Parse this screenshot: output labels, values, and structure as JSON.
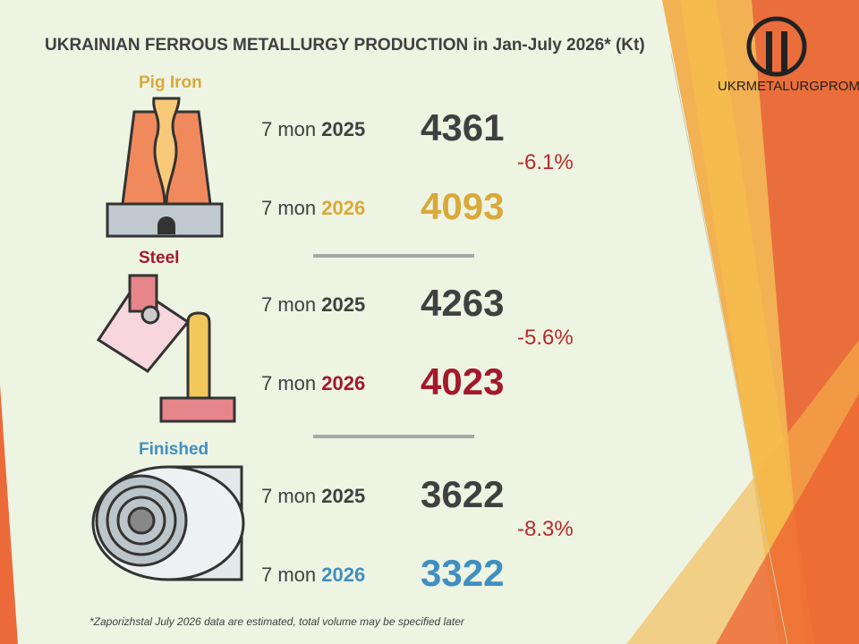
{
  "header": {
    "title": "UKRAINIAN FERROUS METALLURGY PRODUCTION in Jan-July 2026* (Kt)",
    "logo": "UKRMETALURGPROM"
  },
  "sections": [
    {
      "label": "Pig Iron",
      "color": "#d9a93a",
      "change": "-6.1%",
      "rows": [
        {
          "period": "7 mon",
          "year": "2025",
          "value": 4361
        },
        {
          "period": "7 mon",
          "year": "2026",
          "value": 4093
        }
      ]
    },
    {
      "label": "Steel",
      "color": "#a3192b",
      "change": "-5.6%",
      "rows": [
        {
          "period": "7 mon",
          "year": "2025",
          "value": 4263
        },
        {
          "period": "7 mon",
          "year": "2026",
          "value": 4023
        }
      ]
    },
    {
      "label": "Finished",
      "color": "#3f8fc1",
      "change": "-8.3%",
      "rows": [
        {
          "period": "7 mon",
          "year": "2025",
          "value": 3622
        },
        {
          "period": "7 mon",
          "year": "2026",
          "value": 3322
        }
      ]
    }
  ],
  "footnote": "*Zaporizhstal  July 2026 data are estimated, total volume may be specified later"
}
